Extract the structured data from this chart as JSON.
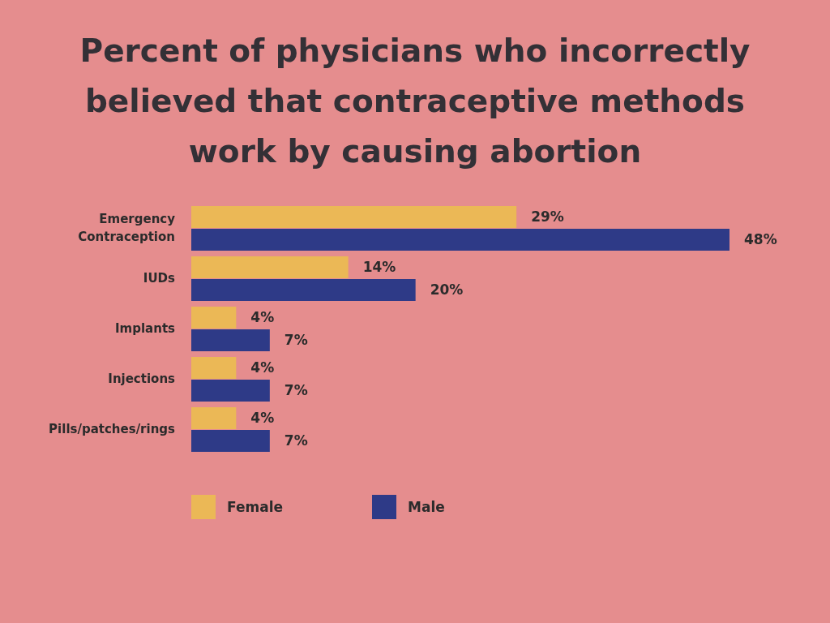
{
  "chart_data": {
    "type": "bar",
    "orientation": "horizontal",
    "title": "Percent of physicians who incorrectly believed that contraceptive methods work by causing abortion",
    "categories": [
      "Emergency Contraception",
      "IUDs",
      "Implants",
      "Injections",
      "Pills/patches/rings"
    ],
    "series": [
      {
        "name": "Female",
        "color": "#ebb856",
        "values": [
          29,
          14,
          4,
          4,
          4
        ],
        "value_labels": [
          "29%",
          "14%",
          "4%",
          "4%",
          "4%"
        ]
      },
      {
        "name": "Male",
        "color": "#2e3a87",
        "values": [
          48,
          20,
          7,
          7,
          7
        ],
        "value_labels": [
          "48%",
          "20%",
          "7%",
          "7%",
          "7%"
        ]
      }
    ],
    "legend": "bottom",
    "grid": false
  }
}
